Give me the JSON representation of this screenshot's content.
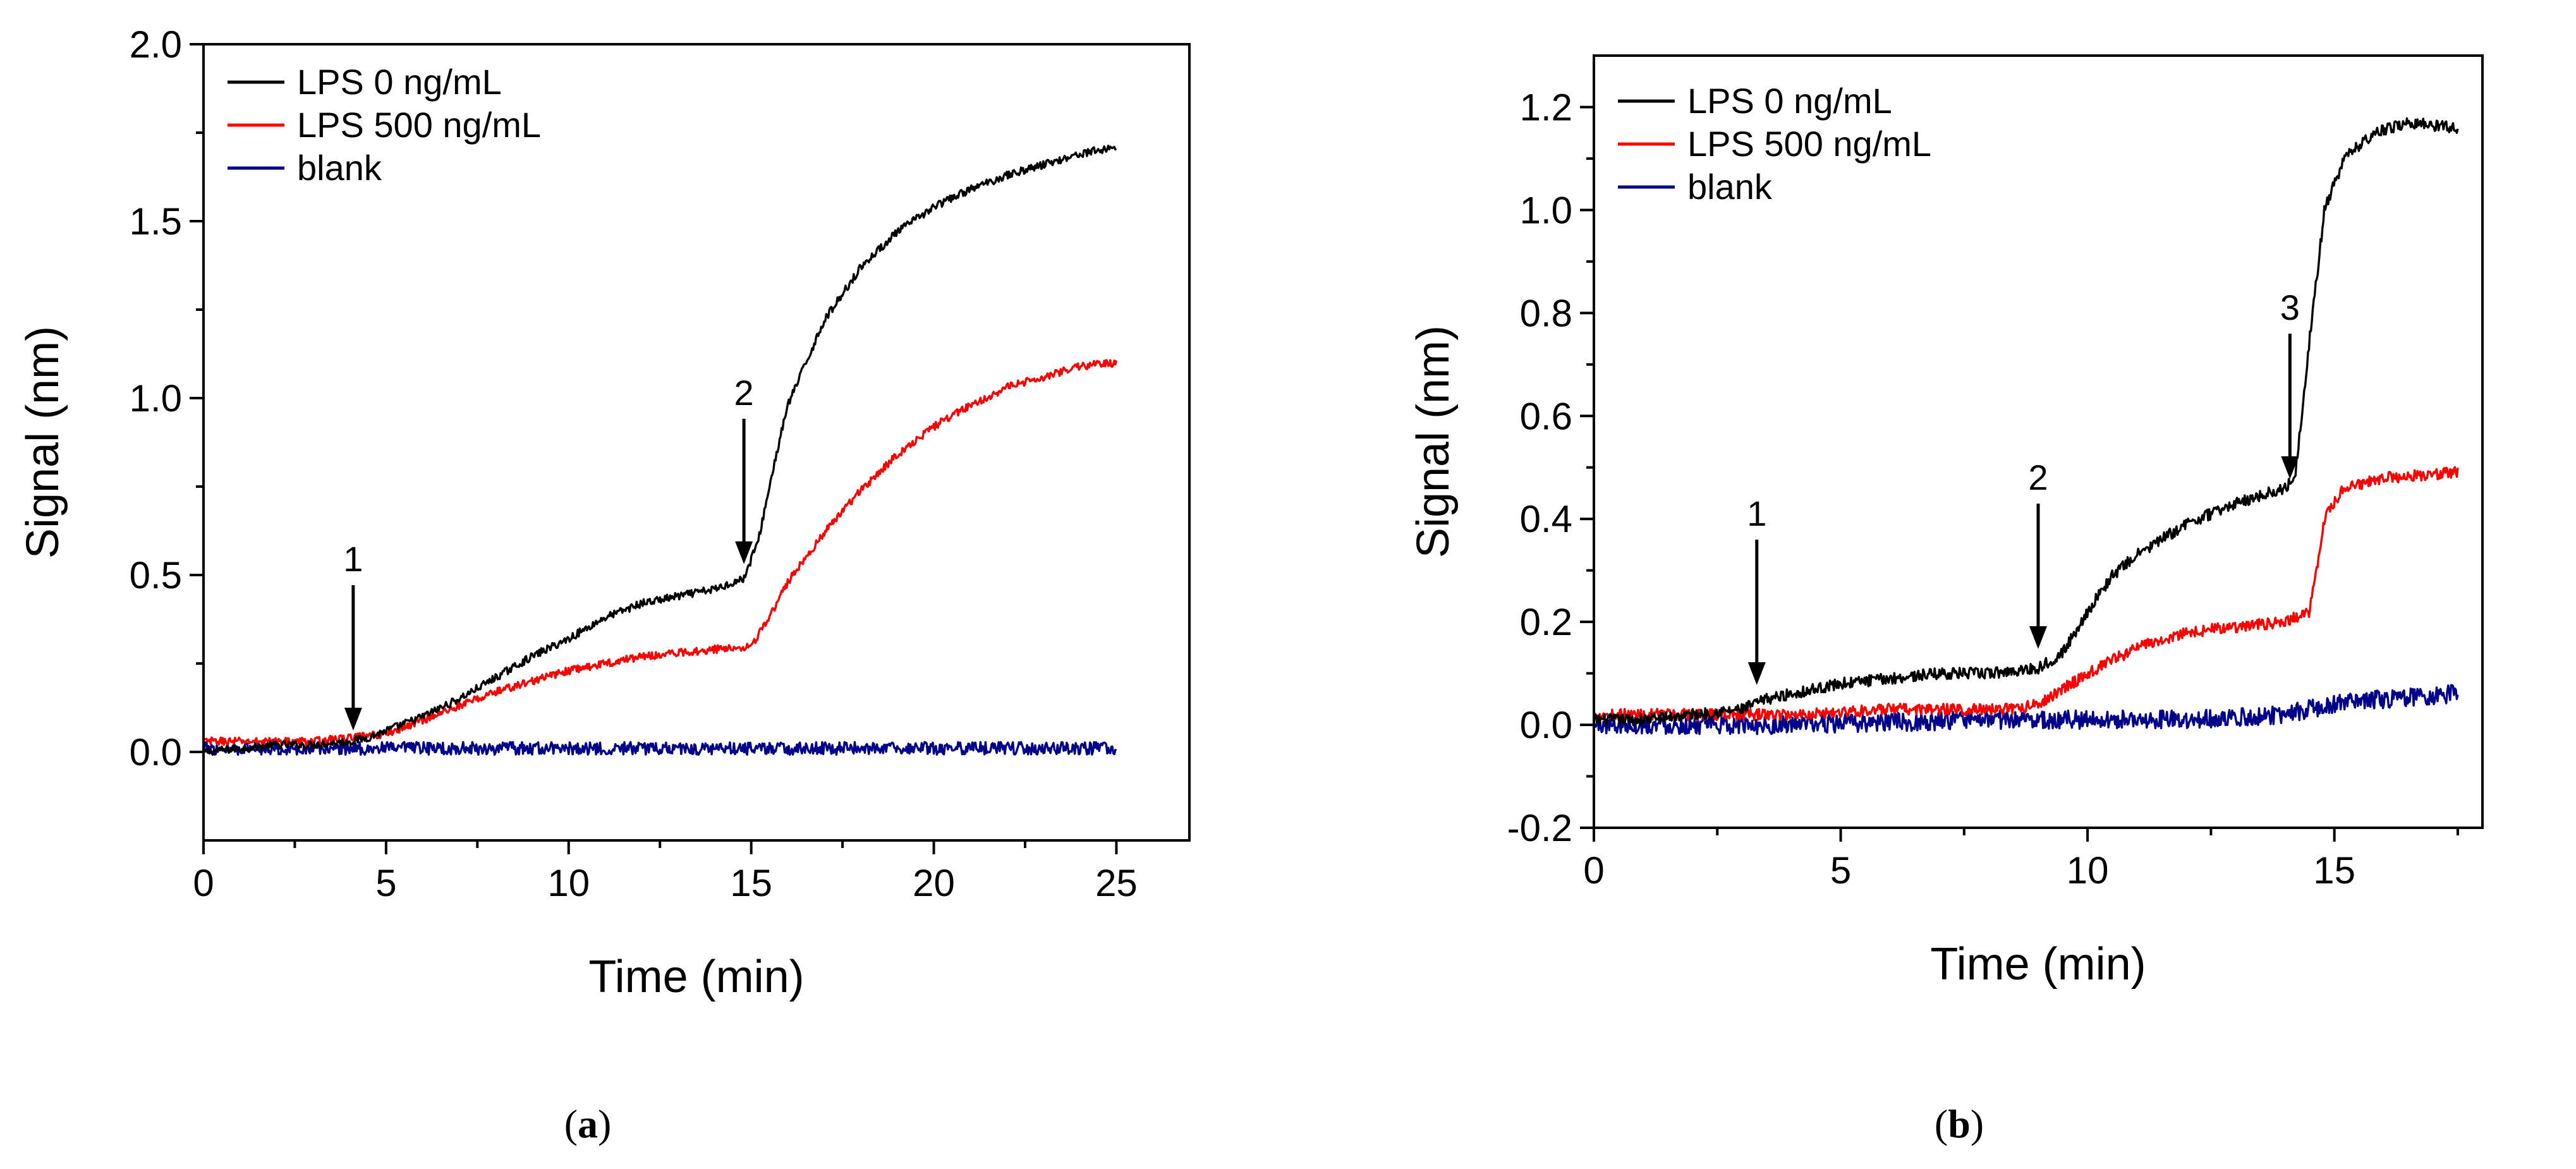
{
  "chart_data": [
    {
      "type": "line",
      "panel_label_open": "(",
      "panel_label": "a",
      "panel_label_close": ")",
      "xlabel": "Time (min)",
      "ylabel": "Signal (nm)",
      "xlim": [
        0,
        27
      ],
      "ylim": [
        -0.25,
        2.0
      ],
      "xticks": [
        0,
        5,
        10,
        15,
        20,
        25
      ],
      "xtick_labels": [
        "0",
        "5",
        "10",
        "15",
        "20",
        "25"
      ],
      "yticks": [
        0.0,
        0.5,
        1.0,
        1.5,
        2.0
      ],
      "ytick_labels": [
        "0.0",
        "0.5",
        "1.0",
        "1.5",
        "2.0"
      ],
      "legend_position": "top-left",
      "series": [
        {
          "name": "LPS 0 ng/mL",
          "color": "#000000",
          "x": [
            0,
            1,
            2,
            3,
            4,
            4.5,
            5,
            6,
            7,
            8,
            9,
            10,
            11,
            12,
            13,
            14,
            14.8,
            15.2,
            15.6,
            16,
            17,
            18,
            19,
            20,
            21,
            22,
            23,
            24,
            25
          ],
          "y": [
            0.0,
            0.01,
            0.02,
            0.02,
            0.03,
            0.04,
            0.06,
            0.1,
            0.15,
            0.21,
            0.27,
            0.32,
            0.38,
            0.42,
            0.44,
            0.46,
            0.49,
            0.6,
            0.8,
            0.98,
            1.22,
            1.37,
            1.47,
            1.54,
            1.59,
            1.63,
            1.66,
            1.69,
            1.71
          ]
        },
        {
          "name": "LPS 500 ng/mL",
          "color": "#ff0000",
          "x": [
            0,
            1,
            2,
            3,
            4,
            5,
            6,
            7,
            8,
            9,
            10,
            11,
            12,
            13,
            14,
            15,
            15.5,
            16,
            16.5,
            17,
            18,
            19,
            20,
            21,
            22,
            23,
            24,
            25
          ],
          "y": [
            0.03,
            0.03,
            0.03,
            0.03,
            0.04,
            0.05,
            0.09,
            0.13,
            0.17,
            0.2,
            0.23,
            0.25,
            0.27,
            0.28,
            0.29,
            0.3,
            0.38,
            0.48,
            0.55,
            0.62,
            0.74,
            0.84,
            0.92,
            0.98,
            1.03,
            1.06,
            1.09,
            1.1
          ]
        },
        {
          "name": "blank",
          "color": "#00008b",
          "x": [
            0,
            5,
            10,
            15,
            20,
            25
          ],
          "y": [
            0.01,
            0.01,
            0.01,
            0.01,
            0.01,
            0.01
          ]
        }
      ],
      "annotations": [
        {
          "text": "1",
          "x": 4.1,
          "y": 0.05
        },
        {
          "text": "2",
          "x": 14.8,
          "y": 0.52
        }
      ]
    },
    {
      "type": "line",
      "panel_label_open": "(",
      "panel_label": "b",
      "panel_label_close": ")",
      "xlabel": "Time (min)",
      "ylabel": "Signal (nm)",
      "xlim": [
        0,
        18
      ],
      "ylim": [
        -0.2,
        1.3
      ],
      "xticks": [
        0,
        5,
        10,
        15
      ],
      "xtick_labels": [
        "0",
        "5",
        "10",
        "15"
      ],
      "yticks": [
        -0.2,
        0.0,
        0.2,
        0.4,
        0.6,
        0.8,
        1.0,
        1.2
      ],
      "ytick_labels": [
        "-0.2",
        "0.0",
        "0.2",
        "0.4",
        "0.6",
        "0.8",
        "1.0",
        "1.2"
      ],
      "legend_position": "top-left",
      "series": [
        {
          "name": "LPS 0 ng/mL",
          "color": "#000000",
          "x": [
            0,
            1,
            2,
            3,
            3.5,
            4,
            5,
            6,
            7,
            8,
            9,
            9.5,
            10,
            10.5,
            11,
            12,
            13,
            14,
            14.2,
            14.5,
            14.8,
            15.2,
            15.8,
            16.5,
            17.5
          ],
          "y": [
            0.01,
            0.01,
            0.02,
            0.03,
            0.05,
            0.06,
            0.08,
            0.09,
            0.1,
            0.1,
            0.11,
            0.14,
            0.22,
            0.29,
            0.33,
            0.39,
            0.43,
            0.46,
            0.48,
            0.75,
            1.0,
            1.1,
            1.15,
            1.17,
            1.16
          ]
        },
        {
          "name": "LPS 500 ng/mL",
          "color": "#ff0000",
          "x": [
            0,
            2,
            4,
            6,
            7,
            8,
            8.5,
            9,
            9.5,
            10,
            11,
            12,
            13,
            14,
            14.5,
            14.8,
            15.2,
            16,
            17.5
          ],
          "y": [
            0.02,
            0.02,
            0.02,
            0.03,
            0.03,
            0.03,
            0.03,
            0.04,
            0.07,
            0.1,
            0.15,
            0.18,
            0.19,
            0.2,
            0.22,
            0.4,
            0.46,
            0.48,
            0.49
          ]
        },
        {
          "name": "blank",
          "color": "#00008b",
          "x": [
            0,
            4,
            8,
            12,
            14,
            15,
            16,
            17.5
          ],
          "y": [
            0.0,
            0.0,
            0.01,
            0.01,
            0.02,
            0.04,
            0.05,
            0.06
          ]
        }
      ],
      "annotations": [
        {
          "text": "1",
          "x": 3.3,
          "y": 0.07
        },
        {
          "text": "2",
          "x": 9.0,
          "y": 0.14
        },
        {
          "text": "3",
          "x": 14.1,
          "y": 0.47
        }
      ]
    }
  ]
}
